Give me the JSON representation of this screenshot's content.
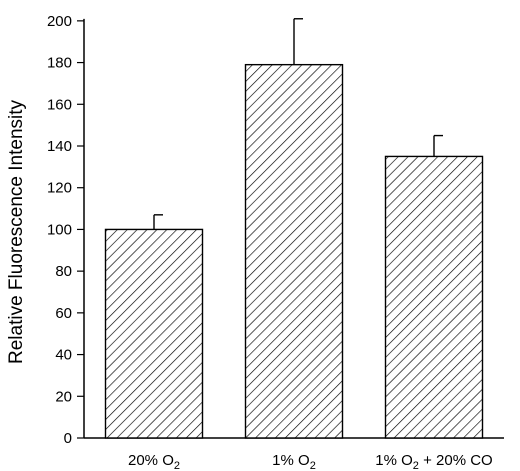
{
  "chart_data": {
    "type": "bar",
    "categories": [
      {
        "label": "20% O",
        "sub": "2",
        "suffix": ""
      },
      {
        "label": "1% O",
        "sub": "2",
        "suffix": ""
      },
      {
        "label": "1% O",
        "sub": "2",
        "suffix": " + 20% CO"
      }
    ],
    "series": [
      {
        "values": [
          100,
          179,
          135
        ],
        "error": [
          7,
          22,
          10
        ]
      }
    ],
    "ylabel": "Relative Fluorescence Intensity",
    "xlabel": "",
    "title": "",
    "ylim": [
      0,
      210
    ],
    "yticks": [
      0,
      20,
      40,
      60,
      80,
      100,
      120,
      140,
      160,
      180,
      200
    ],
    "bar_fill": "diagonal-hatch",
    "colors": {
      "stroke": "#000000",
      "fill": "#ffffff"
    },
    "grid": false,
    "legend": "none"
  }
}
